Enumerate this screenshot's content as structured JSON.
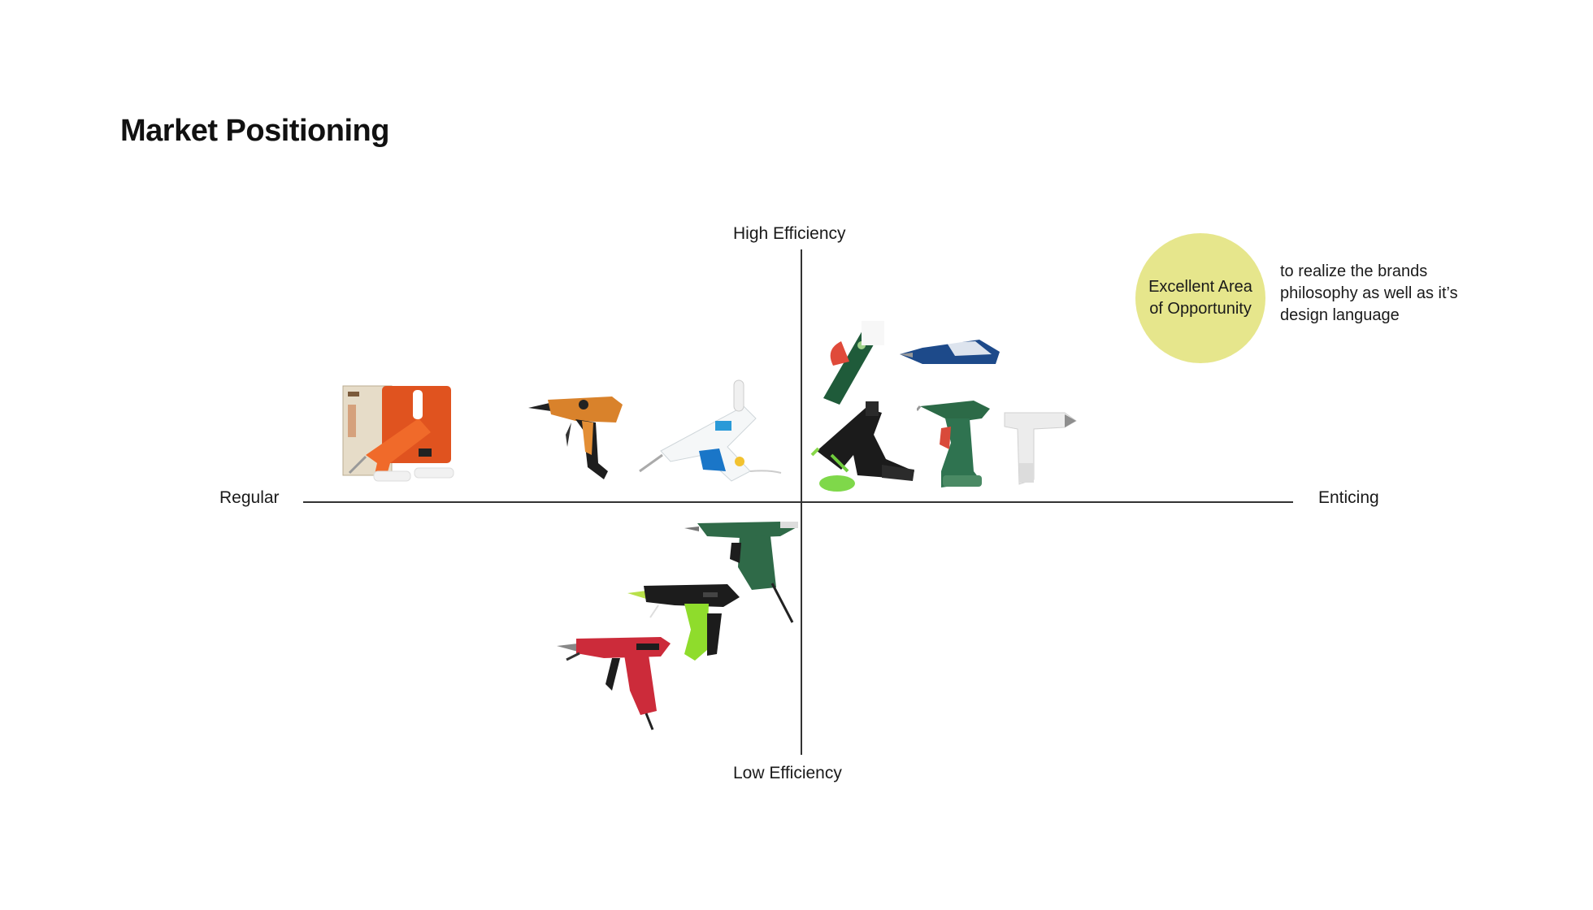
{
  "page": {
    "title": "Market Positioning"
  },
  "axes": {
    "top": "High Efficiency",
    "bottom": "Low Efficiency",
    "left": "Regular",
    "right": "Enticing"
  },
  "opportunity": {
    "label": "Excellent Area of Opportunity",
    "note": "to realize the brands philosophy as well as it’s design language",
    "color": "#e6e68c"
  },
  "products": [
    {
      "name": "orange-glue-gun-kit",
      "quadrant": "regular-high-efficiency"
    },
    {
      "name": "orange-black-glue-gun",
      "quadrant": "regular-high-efficiency"
    },
    {
      "name": "white-blue-glue-gun",
      "quadrant": "regular-high-efficiency"
    },
    {
      "name": "green-glue-pen",
      "quadrant": "enticing-high-efficiency"
    },
    {
      "name": "blue-glue-pen",
      "quadrant": "enticing-high-efficiency"
    },
    {
      "name": "black-green-cordless-glue-gun",
      "quadrant": "enticing-high-efficiency"
    },
    {
      "name": "green-cordless-glue-gun",
      "quadrant": "enticing-high-efficiency"
    },
    {
      "name": "white-minimal-glue-gun",
      "quadrant": "enticing-high-efficiency"
    },
    {
      "name": "green-industrial-glue-gun",
      "quadrant": "regular-low-efficiency"
    },
    {
      "name": "black-lime-glue-gun",
      "quadrant": "regular-low-efficiency"
    },
    {
      "name": "red-glue-gun",
      "quadrant": "regular-low-efficiency"
    }
  ]
}
